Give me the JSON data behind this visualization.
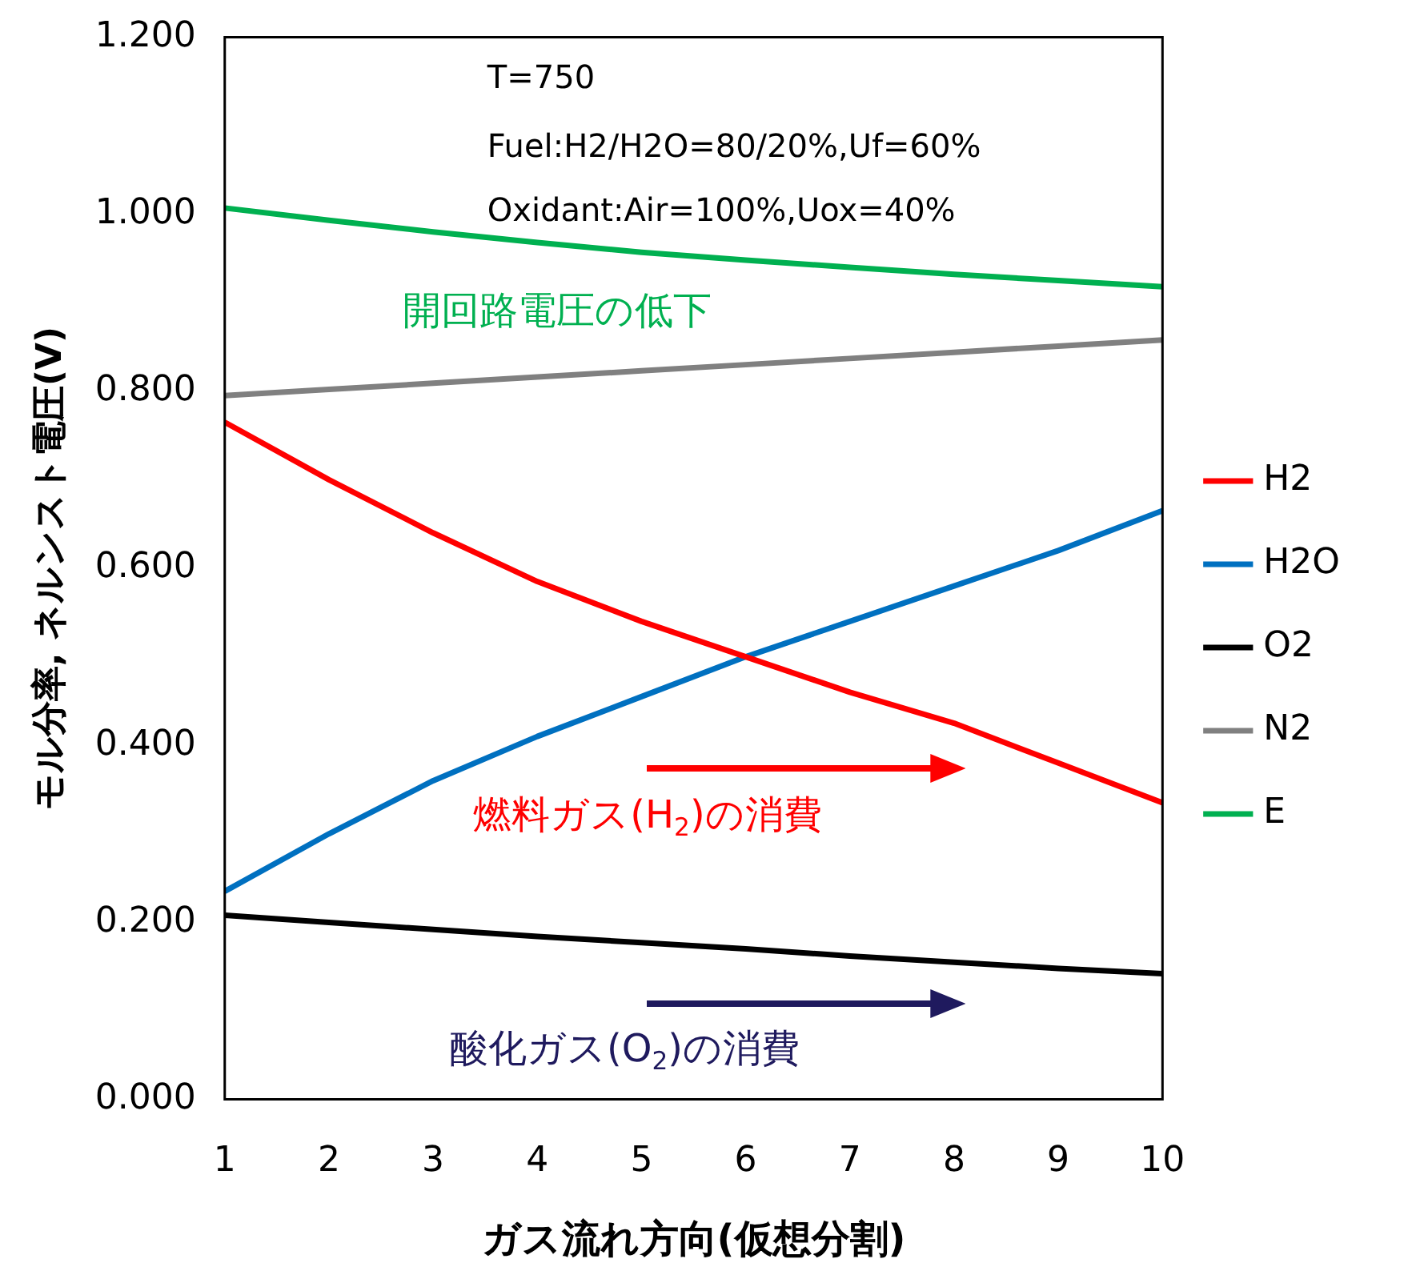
{
  "chart_data": {
    "type": "line",
    "xlabel": "ガス流れ方向(仮想分割)",
    "ylabel": "モル分率, ネルンスト電圧(V)",
    "x": [
      1,
      2,
      3,
      4,
      5,
      6,
      7,
      8,
      9,
      10
    ],
    "xlim": [
      1,
      10
    ],
    "xticks": [
      1,
      2,
      3,
      4,
      5,
      6,
      7,
      8,
      9,
      10
    ],
    "ylim": [
      0,
      1.2
    ],
    "yticks": [
      {
        "value": 0,
        "label": "0.000"
      },
      {
        "value": 0.2,
        "label": "0.200"
      },
      {
        "value": 0.4,
        "label": "0.400"
      },
      {
        "value": 0.6,
        "label": "0.600"
      },
      {
        "value": 0.8,
        "label": "0.800"
      },
      {
        "value": 1.0,
        "label": "1.000"
      },
      {
        "value": 1.2,
        "label": "1.200"
      }
    ],
    "grid": false,
    "legend": "right",
    "marker": "none",
    "line_style": "solid",
    "series": [
      {
        "name": "H2",
        "color": "#ff0000",
        "values": [
          0.765,
          0.7,
          0.64,
          0.585,
          0.54,
          0.5,
          0.46,
          0.425,
          0.38,
          0.335
        ]
      },
      {
        "name": "H2O",
        "color": "#0070c0",
        "values": [
          0.235,
          0.3,
          0.36,
          0.41,
          0.455,
          0.5,
          0.54,
          0.58,
          0.62,
          0.665
        ]
      },
      {
        "name": "O2",
        "color": "#000000",
        "values": [
          0.208,
          0.2,
          0.192,
          0.184,
          0.177,
          0.17,
          0.162,
          0.155,
          0.148,
          0.142
        ]
      },
      {
        "name": "N2",
        "color": "#808080",
        "values": [
          0.795,
          0.802,
          0.809,
          0.816,
          0.823,
          0.83,
          0.837,
          0.844,
          0.851,
          0.858
        ]
      },
      {
        "name": "E",
        "color": "#00b050",
        "values": [
          1.007,
          0.993,
          0.98,
          0.968,
          0.957,
          0.948,
          0.94,
          0.932,
          0.925,
          0.918
        ]
      }
    ],
    "annotations": [
      "T=750",
      "Fuel:H2/H2O=80/20%,Uf=60%",
      "Oxidant:Air=100%,Uox=40%",
      "開回路電圧の低下",
      "燃料ガス(H$_{2}$)の消費",
      "酸化ガス(O$_{2}$)の消費"
    ]
  }
}
